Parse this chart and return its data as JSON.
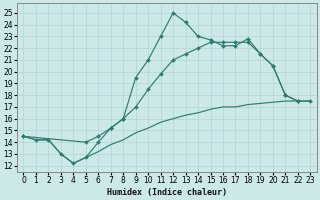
{
  "xlabel": "Humidex (Indice chaleur)",
  "bg_color": "#cce8e8",
  "grid_color": "#b0d4d4",
  "line_color": "#2d7d6e",
  "xlim": [
    -0.5,
    23.5
  ],
  "ylim": [
    11.5,
    25.8
  ],
  "yticks": [
    12,
    13,
    14,
    15,
    16,
    17,
    18,
    19,
    20,
    21,
    22,
    23,
    24,
    25
  ],
  "xticks": [
    0,
    1,
    2,
    3,
    4,
    5,
    6,
    7,
    8,
    9,
    10,
    11,
    12,
    13,
    14,
    15,
    16,
    17,
    18,
    19,
    20,
    21,
    22,
    23
  ],
  "main_x": [
    0,
    1,
    2,
    3,
    4,
    5,
    6,
    7,
    8,
    9,
    10,
    11,
    12,
    13,
    14,
    15,
    16,
    17,
    18,
    19,
    20,
    21,
    22
  ],
  "main_y": [
    14.5,
    14.2,
    14.2,
    13.0,
    12.2,
    12.7,
    14.0,
    15.2,
    16.0,
    19.5,
    21.0,
    23.0,
    25.0,
    24.2,
    23.0,
    22.7,
    22.2,
    22.2,
    22.8,
    21.5,
    20.5,
    18.0,
    17.5
  ],
  "upper_x": [
    0,
    5,
    6,
    7,
    8,
    9,
    10,
    11,
    12,
    13,
    14,
    15,
    16,
    17,
    18,
    19,
    20,
    21,
    22,
    23
  ],
  "upper_y": [
    14.5,
    14.0,
    14.5,
    15.2,
    16.0,
    17.0,
    18.5,
    19.8,
    21.0,
    21.5,
    22.0,
    22.5,
    22.5,
    22.5,
    22.5,
    21.5,
    20.5,
    18.0,
    17.5,
    17.5
  ],
  "lower_x": [
    0,
    1,
    2,
    3,
    4,
    5,
    6,
    7,
    8,
    9,
    10,
    11,
    12,
    13,
    14,
    15,
    16,
    17,
    18,
    19,
    20,
    21,
    22,
    23
  ],
  "lower_y": [
    14.5,
    14.2,
    14.2,
    13.0,
    12.2,
    12.7,
    13.2,
    13.8,
    14.2,
    14.8,
    15.2,
    15.7,
    16.0,
    16.3,
    16.5,
    16.8,
    17.0,
    17.0,
    17.2,
    17.3,
    17.4,
    17.5,
    17.5,
    17.5
  ]
}
